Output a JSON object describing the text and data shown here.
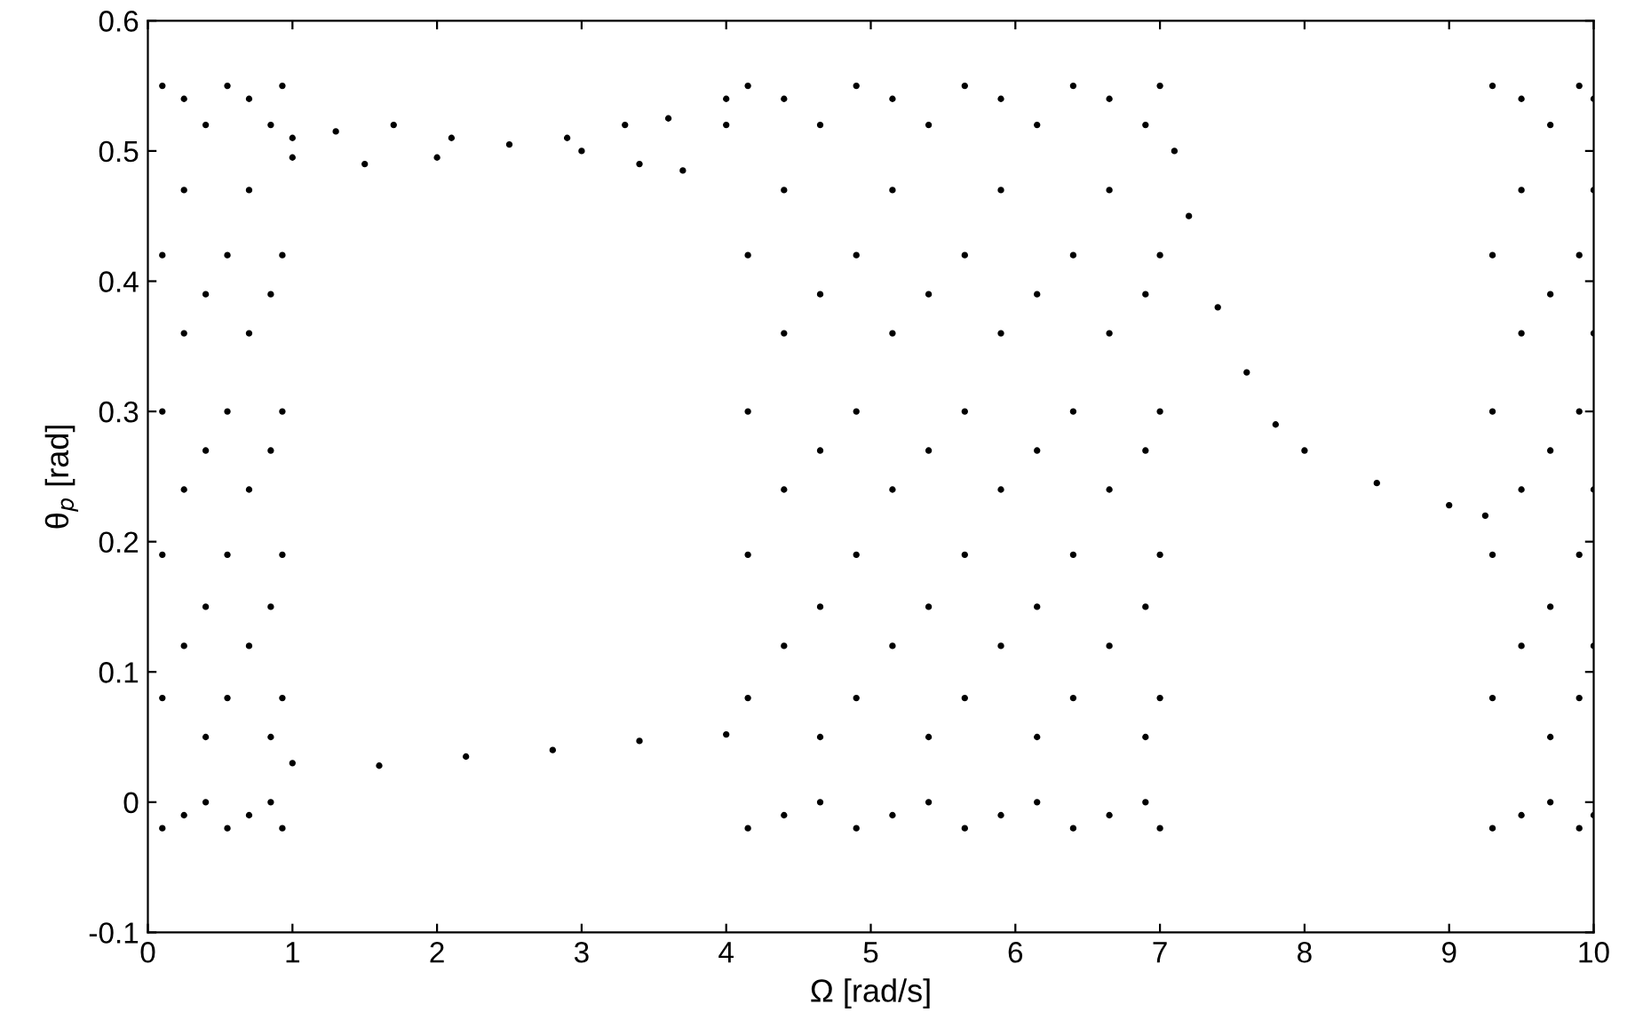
{
  "chart_data": {
    "type": "scatter",
    "xlabel": "Ω [rad/s]",
    "ylabel": "θ$_{p}$ [rad]",
    "xlim": [
      0,
      10
    ],
    "ylim": [
      -0.1,
      0.6
    ],
    "xticks": [
      0,
      1,
      2,
      3,
      4,
      5,
      6,
      7,
      8,
      9,
      10
    ],
    "yticks": [
      -0.1,
      0,
      0.1,
      0.2,
      0.3,
      0.4,
      0.5,
      0.6
    ],
    "grid": false,
    "marker": "circle",
    "series": [
      {
        "color": "#000000",
        "x": [
          0.1,
          0.1,
          0.1,
          0.1,
          0.1,
          0.1,
          0.25,
          0.25,
          0.25,
          0.25,
          0.25,
          0.25,
          0.4,
          0.4,
          0.4,
          0.4,
          0.4,
          0.4,
          0.55,
          0.55,
          0.55,
          0.55,
          0.55,
          0.55,
          0.7,
          0.7,
          0.7,
          0.7,
          0.7,
          0.7,
          0.85,
          0.85,
          0.85,
          0.85,
          0.85,
          0.85,
          0.93,
          0.93,
          0.93,
          0.93,
          0.93,
          0.93
        ],
        "values": [
          -0.02,
          0.08,
          0.19,
          0.3,
          0.42,
          0.55,
          -0.01,
          0.12,
          0.24,
          0.36,
          0.47,
          0.54,
          0.0,
          0.05,
          0.15,
          0.27,
          0.39,
          0.52,
          -0.02,
          0.08,
          0.19,
          0.3,
          0.42,
          0.55,
          -0.01,
          0.12,
          0.24,
          0.36,
          0.47,
          0.54,
          0.0,
          0.05,
          0.15,
          0.27,
          0.39,
          0.52,
          -0.02,
          0.08,
          0.19,
          0.3,
          0.42,
          0.55
        ]
      },
      {
        "color": "#000000",
        "x": [
          4.15,
          4.15,
          4.15,
          4.15,
          4.15,
          4.15,
          4.4,
          4.4,
          4.4,
          4.4,
          4.4,
          4.4,
          4.65,
          4.65,
          4.65,
          4.65,
          4.65,
          4.65,
          4.9,
          4.9,
          4.9,
          4.9,
          4.9,
          4.9,
          5.15,
          5.15,
          5.15,
          5.15,
          5.15,
          5.15,
          5.4,
          5.4,
          5.4,
          5.4,
          5.4,
          5.4,
          5.65,
          5.65,
          5.65,
          5.65,
          5.65,
          5.65,
          5.9,
          5.9,
          5.9,
          5.9,
          5.9,
          5.9,
          6.15,
          6.15,
          6.15,
          6.15,
          6.15,
          6.15,
          6.4,
          6.4,
          6.4,
          6.4,
          6.4,
          6.4,
          6.65,
          6.65,
          6.65,
          6.65,
          6.65,
          6.65,
          6.9,
          6.9,
          6.9,
          6.9,
          6.9,
          6.9,
          7.0,
          7.0,
          7.0,
          7.0,
          7.0,
          7.0
        ],
        "values": [
          -0.02,
          0.08,
          0.19,
          0.3,
          0.42,
          0.55,
          -0.01,
          0.12,
          0.24,
          0.36,
          0.47,
          0.54,
          0.0,
          0.05,
          0.15,
          0.27,
          0.39,
          0.52,
          -0.02,
          0.08,
          0.19,
          0.3,
          0.42,
          0.55,
          -0.01,
          0.12,
          0.24,
          0.36,
          0.47,
          0.54,
          0.0,
          0.05,
          0.15,
          0.27,
          0.39,
          0.52,
          -0.02,
          0.08,
          0.19,
          0.3,
          0.42,
          0.55,
          -0.01,
          0.12,
          0.24,
          0.36,
          0.47,
          0.54,
          0.0,
          0.05,
          0.15,
          0.27,
          0.39,
          0.52,
          -0.02,
          0.08,
          0.19,
          0.3,
          0.42,
          0.55,
          -0.01,
          0.12,
          0.24,
          0.36,
          0.47,
          0.54,
          0.0,
          0.05,
          0.15,
          0.27,
          0.39,
          0.52,
          -0.02,
          0.08,
          0.19,
          0.3,
          0.42,
          0.55
        ]
      },
      {
        "color": "#000000",
        "x": [
          9.3,
          9.3,
          9.3,
          9.3,
          9.3,
          9.3,
          9.5,
          9.5,
          9.5,
          9.5,
          9.5,
          9.5,
          9.7,
          9.7,
          9.7,
          9.7,
          9.7,
          9.7,
          9.9,
          9.9,
          9.9,
          9.9,
          9.9,
          9.9,
          10.0,
          10.0,
          10.0,
          10.0,
          10.0,
          10.0
        ],
        "values": [
          -0.02,
          0.08,
          0.19,
          0.3,
          0.42,
          0.55,
          -0.01,
          0.12,
          0.24,
          0.36,
          0.47,
          0.54,
          0.0,
          0.05,
          0.15,
          0.27,
          0.39,
          0.52,
          -0.02,
          0.08,
          0.19,
          0.3,
          0.42,
          0.55,
          -0.01,
          0.12,
          0.24,
          0.36,
          0.47,
          0.54
        ]
      },
      {
        "color": "#000000",
        "x": [
          1.0,
          1.3,
          1.7,
          2.1,
          2.5,
          2.9,
          3.3,
          3.6,
          4.0,
          1.0,
          1.5,
          2.0,
          3.0,
          3.4,
          3.7,
          4.0,
          1.0,
          1.6,
          2.2,
          2.8,
          3.4,
          4.0,
          7.1,
          7.2,
          7.4,
          7.6,
          7.8,
          8.0,
          8.5,
          9.0,
          9.25
        ],
        "values": [
          0.51,
          0.515,
          0.52,
          0.51,
          0.505,
          0.51,
          0.52,
          0.525,
          0.54,
          0.495,
          0.49,
          0.495,
          0.5,
          0.49,
          0.485,
          0.52,
          0.03,
          0.028,
          0.035,
          0.04,
          0.047,
          0.052,
          0.5,
          0.45,
          0.38,
          0.33,
          0.29,
          0.27,
          0.245,
          0.228,
          0.22
        ]
      }
    ]
  }
}
